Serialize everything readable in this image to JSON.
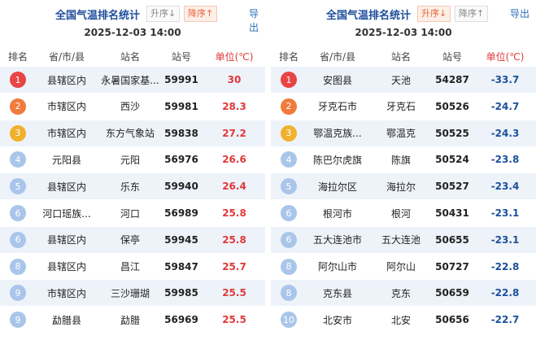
{
  "panels": [
    {
      "title": "全国气温排名统计",
      "buttons": [
        {
          "label": "升序↓",
          "active": false
        },
        {
          "label": "降序↑",
          "active": true
        }
      ],
      "export": "导出",
      "time": "2025-12-03 14:00",
      "value_color": "#e0393a",
      "columns": [
        "排名",
        "省/市/县",
        "站名",
        "站号",
        "单位(℃)"
      ],
      "rows": [
        [
          1,
          "县辖区内",
          "永暑国家基...",
          "59991",
          30
        ],
        [
          2,
          "市辖区内",
          "西沙",
          "59981",
          28.3
        ],
        [
          3,
          "市辖区内",
          "东方气象站",
          "59838",
          27.2
        ],
        [
          4,
          "元阳县",
          "元阳",
          "56976",
          26.6
        ],
        [
          5,
          "县辖区内",
          "乐东",
          "59940",
          26.4
        ],
        [
          6,
          "河口瑶族...",
          "河口",
          "56989",
          25.8
        ],
        [
          6,
          "县辖区内",
          "保亭",
          "59945",
          25.8
        ],
        [
          8,
          "县辖区内",
          "昌江",
          "59847",
          25.7
        ],
        [
          9,
          "市辖区内",
          "三沙珊瑚",
          "59985",
          25.5
        ],
        [
          9,
          "勐腊县",
          "勐腊",
          "56969",
          25.5
        ]
      ]
    },
    {
      "title": "全国气温排名统计",
      "buttons": [
        {
          "label": "升序↓",
          "active": true
        },
        {
          "label": "降序↑",
          "active": false
        }
      ],
      "export": "导出",
      "time": "2025-12-03 14:00",
      "value_color": "#1d4f9a",
      "columns": [
        "排名",
        "省/市/县",
        "站名",
        "站号",
        "单位(℃)"
      ],
      "rows": [
        [
          1,
          "安图县",
          "天池",
          "54287",
          -33.7
        ],
        [
          2,
          "牙克石市",
          "牙克石",
          "50526",
          -24.7
        ],
        [
          3,
          "鄂温克族...",
          "鄂温克",
          "50525",
          -24.3
        ],
        [
          4,
          "陈巴尔虎旗",
          "陈旗",
          "50524",
          -23.8
        ],
        [
          5,
          "海拉尔区",
          "海拉尔",
          "50527",
          -23.4
        ],
        [
          6,
          "根河市",
          "根河",
          "50431",
          -23.1
        ],
        [
          6,
          "五大连池市",
          "五大连池",
          "50655",
          -23.1
        ],
        [
          8,
          "阿尔山市",
          "阿尔山",
          "50727",
          -22.8
        ],
        [
          8,
          "克东县",
          "克东",
          "50659",
          -22.8
        ],
        [
          10,
          "北安市",
          "北安",
          "50656",
          -22.7
        ]
      ]
    }
  ]
}
